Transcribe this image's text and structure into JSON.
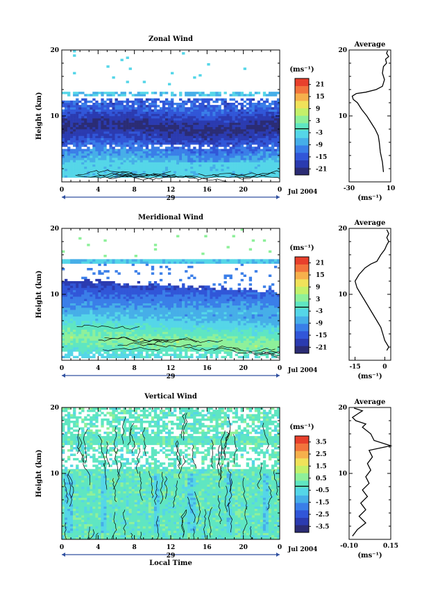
{
  "chart_data": [
    {
      "type": "heatmap",
      "title": "Zonal Wind",
      "ylabel": "Height (km)",
      "yticks": [
        "20",
        "10"
      ],
      "ylim": [
        0,
        20
      ],
      "xticks": [
        "0",
        "4",
        "8",
        "12",
        "16",
        "20",
        "0"
      ],
      "xlim": [
        0,
        24
      ],
      "day_label": "29",
      "date_label": "Jul 2004",
      "colorbar": {
        "unit": "(ms⁻¹)",
        "tick_labels": [
          "21",
          "15",
          "9",
          "3",
          "-3",
          "-9",
          "-15",
          "-21"
        ],
        "range": [
          -24,
          24
        ]
      },
      "profile": {
        "title": "Average",
        "yticks": [
          "20",
          "10"
        ],
        "xticks": [
          "-30",
          "10"
        ],
        "xlim": [
          -30,
          10
        ],
        "xlabel": "(ms⁻¹)",
        "points": [
          [
            3,
            1.5
          ],
          [
            2,
            3
          ],
          [
            0,
            4.5
          ],
          [
            -1,
            6
          ],
          [
            -2,
            7
          ],
          [
            -5,
            8
          ],
          [
            -9,
            9
          ],
          [
            -13,
            10
          ],
          [
            -18,
            11
          ],
          [
            -22,
            12
          ],
          [
            -26,
            12.5
          ],
          [
            -27,
            13
          ],
          [
            -23,
            13.4
          ],
          [
            -14,
            13.6
          ],
          [
            -4,
            14
          ],
          [
            2,
            14.5
          ],
          [
            4,
            15.5
          ],
          [
            2,
            16.5
          ],
          [
            3,
            17.5
          ],
          [
            6,
            18
          ],
          [
            5,
            18.6
          ],
          [
            8,
            19
          ],
          [
            6,
            19.5
          ],
          [
            7,
            19.9
          ]
        ]
      }
    },
    {
      "type": "heatmap",
      "title": "Meridional Wind",
      "ylabel": "Height (km)",
      "yticks": [
        "20",
        "10"
      ],
      "ylim": [
        0,
        20
      ],
      "xticks": [
        "0",
        "4",
        "8",
        "12",
        "16",
        "20",
        "0"
      ],
      "xlim": [
        0,
        24
      ],
      "day_label": "29",
      "date_label": "Jul 2004",
      "colorbar": {
        "unit": "(ms⁻¹)",
        "tick_labels": [
          "21",
          "15",
          "9",
          "3",
          "-3",
          "-9",
          "-15",
          "-21"
        ],
        "range": [
          -24,
          24
        ]
      },
      "profile": {
        "title": "Average",
        "yticks": [
          "20",
          "10"
        ],
        "xticks": [
          "-15",
          "0"
        ],
        "xlim": [
          -18,
          3
        ],
        "xlabel": "(ms⁻¹)",
        "points": [
          [
            1,
            1.5
          ],
          [
            2,
            2
          ],
          [
            0,
            3
          ],
          [
            -1,
            4
          ],
          [
            -2,
            5
          ],
          [
            -4,
            6
          ],
          [
            -6,
            7
          ],
          [
            -8,
            8
          ],
          [
            -10,
            9
          ],
          [
            -12,
            10
          ],
          [
            -14,
            11
          ],
          [
            -15,
            12
          ],
          [
            -13,
            13
          ],
          [
            -10,
            14
          ],
          [
            -7,
            14.6
          ],
          [
            -4,
            15
          ],
          [
            -2,
            16
          ],
          [
            0,
            16.8
          ],
          [
            1,
            17.5
          ],
          [
            2,
            18
          ],
          [
            1,
            18.6
          ],
          [
            2,
            19.2
          ],
          [
            1,
            19.8
          ]
        ]
      }
    },
    {
      "type": "heatmap",
      "title": "Vertical Wind",
      "ylabel": "Height (km)",
      "xlabel": "Local Time",
      "yticks": [
        "20",
        "10"
      ],
      "ylim": [
        0,
        20
      ],
      "xticks": [
        "0",
        "4",
        "8",
        "12",
        "16",
        "20",
        "0"
      ],
      "xlim": [
        0,
        24
      ],
      "day_label": "29",
      "date_label": "Jul 2004",
      "colorbar": {
        "unit": "(ms⁻¹)",
        "tick_labels": [
          "3.5",
          "2.5",
          "1.5",
          "0.5",
          "-0.5",
          "-1.5",
          "-2.5",
          "-3.5"
        ],
        "range": [
          -4,
          4
        ]
      },
      "profile": {
        "title": "Average",
        "yticks": [
          "20",
          "10"
        ],
        "xticks": [
          "-0.10",
          "0.15"
        ],
        "xlim": [
          -0.1,
          0.15
        ],
        "xlabel": "(ms⁻¹)",
        "points": [
          [
            -0.08,
            0.5
          ],
          [
            -0.05,
            1.5
          ],
          [
            0.0,
            2.5
          ],
          [
            -0.04,
            3.5
          ],
          [
            0.0,
            4.5
          ],
          [
            -0.03,
            5.5
          ],
          [
            0.01,
            6.5
          ],
          [
            -0.02,
            7.5
          ],
          [
            0.02,
            8.5
          ],
          [
            0.0,
            9.5
          ],
          [
            0.03,
            10.5
          ],
          [
            0.01,
            11.5
          ],
          [
            0.04,
            12.5
          ],
          [
            0.02,
            13.5
          ],
          [
            0.15,
            14.2
          ],
          [
            0.05,
            15
          ],
          [
            0.03,
            16
          ],
          [
            -0.02,
            17
          ],
          [
            0.0,
            17.5
          ],
          [
            -0.06,
            18
          ],
          [
            -0.08,
            18.5
          ],
          [
            -0.05,
            19
          ],
          [
            -0.02,
            19.5
          ],
          [
            -0.07,
            19.9
          ]
        ]
      }
    }
  ]
}
